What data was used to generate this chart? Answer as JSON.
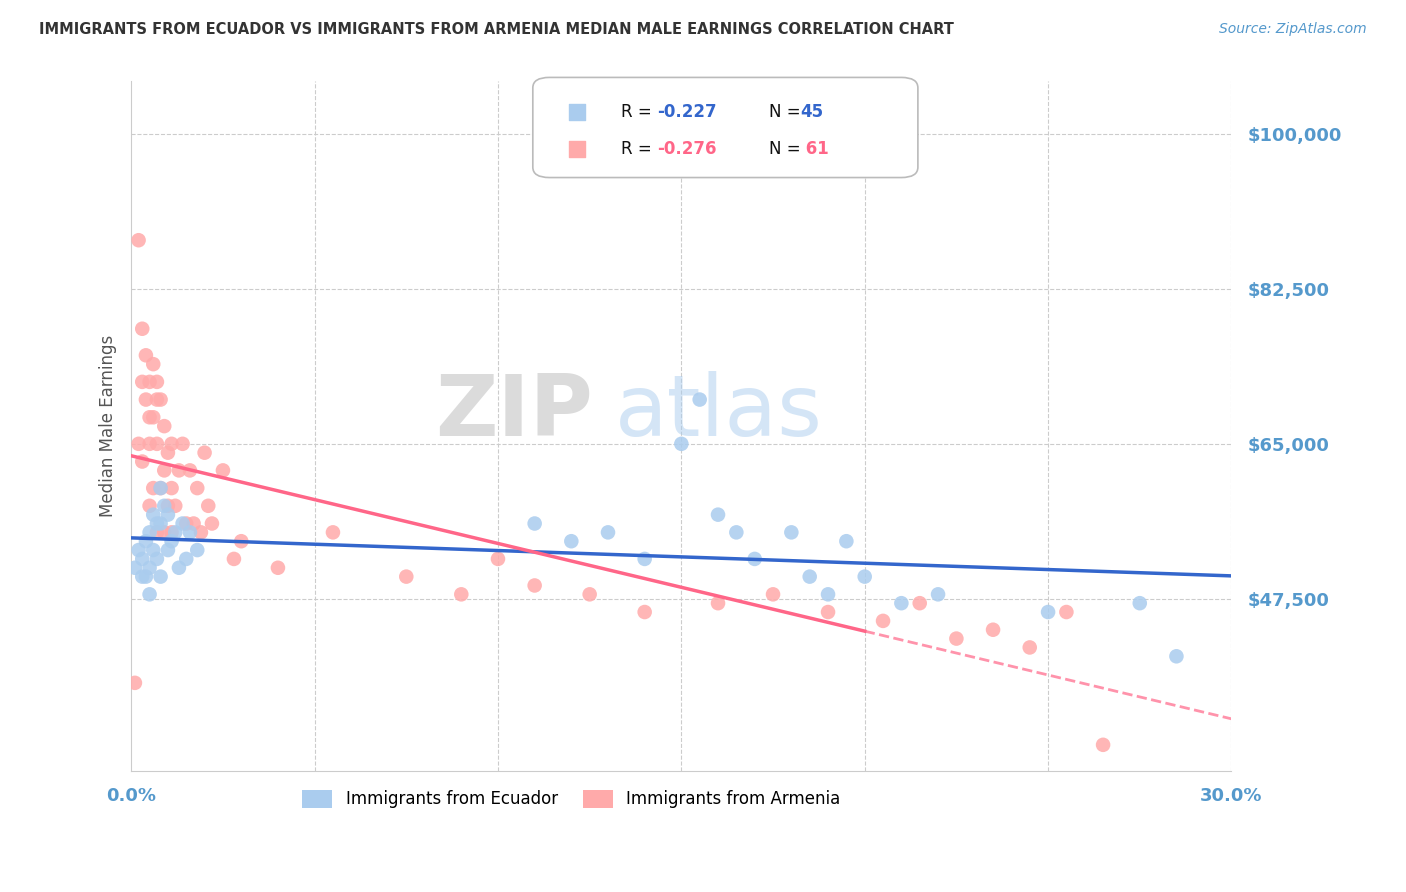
{
  "title": "IMMIGRANTS FROM ECUADOR VS IMMIGRANTS FROM ARMENIA MEDIAN MALE EARNINGS CORRELATION CHART",
  "source": "Source: ZipAtlas.com",
  "ylabel": "Median Male Earnings",
  "xlim": [
    0.0,
    0.3
  ],
  "ylim": [
    28000,
    106000
  ],
  "yticks": [
    47500,
    65000,
    82500,
    100000
  ],
  "ytick_labels": [
    "$47,500",
    "$65,000",
    "$82,500",
    "$100,000"
  ],
  "xticks": [
    0.0,
    0.05,
    0.1,
    0.15,
    0.2,
    0.25,
    0.3
  ],
  "xtick_labels": [
    "0.0%",
    "",
    "",
    "",
    "",
    "",
    "30.0%"
  ],
  "ecuador_color": "#aaccee",
  "armenia_color": "#ffaaaa",
  "ecuador_line_color": "#3366cc",
  "armenia_line_color": "#ff6688",
  "axis_label_color": "#5599cc",
  "title_color": "#333333",
  "watermark_zip": "ZIP",
  "watermark_atlas": "atlas",
  "ecuador_R": -0.227,
  "ecuador_N": 45,
  "armenia_R": -0.276,
  "armenia_N": 61,
  "ecuador_scatter_x": [
    0.001,
    0.002,
    0.003,
    0.003,
    0.004,
    0.004,
    0.005,
    0.005,
    0.005,
    0.006,
    0.006,
    0.007,
    0.007,
    0.008,
    0.008,
    0.008,
    0.009,
    0.01,
    0.01,
    0.011,
    0.012,
    0.013,
    0.014,
    0.015,
    0.016,
    0.018,
    0.11,
    0.12,
    0.13,
    0.14,
    0.15,
    0.155,
    0.16,
    0.165,
    0.17,
    0.18,
    0.185,
    0.19,
    0.195,
    0.2,
    0.21,
    0.22,
    0.25,
    0.275,
    0.285
  ],
  "ecuador_scatter_y": [
    51000,
    53000,
    52000,
    50000,
    54000,
    50000,
    55000,
    51000,
    48000,
    57000,
    53000,
    56000,
    52000,
    60000,
    56000,
    50000,
    58000,
    57000,
    53000,
    54000,
    55000,
    51000,
    56000,
    52000,
    55000,
    53000,
    56000,
    54000,
    55000,
    52000,
    65000,
    70000,
    57000,
    55000,
    52000,
    55000,
    50000,
    48000,
    54000,
    50000,
    47000,
    48000,
    46000,
    47000,
    41000
  ],
  "armenia_scatter_x": [
    0.001,
    0.002,
    0.002,
    0.003,
    0.003,
    0.003,
    0.004,
    0.004,
    0.005,
    0.005,
    0.005,
    0.005,
    0.006,
    0.006,
    0.006,
    0.007,
    0.007,
    0.007,
    0.007,
    0.008,
    0.008,
    0.009,
    0.009,
    0.009,
    0.01,
    0.01,
    0.011,
    0.011,
    0.011,
    0.012,
    0.013,
    0.014,
    0.015,
    0.016,
    0.017,
    0.018,
    0.019,
    0.02,
    0.021,
    0.022,
    0.025,
    0.028,
    0.03,
    0.04,
    0.055,
    0.075,
    0.09,
    0.1,
    0.11,
    0.125,
    0.14,
    0.16,
    0.175,
    0.19,
    0.205,
    0.215,
    0.225,
    0.235,
    0.245,
    0.255,
    0.265
  ],
  "armenia_scatter_y": [
    38000,
    88000,
    65000,
    78000,
    72000,
    63000,
    70000,
    75000,
    68000,
    72000,
    65000,
    58000,
    74000,
    68000,
    60000,
    70000,
    65000,
    72000,
    55000,
    70000,
    60000,
    67000,
    62000,
    55000,
    64000,
    58000,
    65000,
    60000,
    55000,
    58000,
    62000,
    65000,
    56000,
    62000,
    56000,
    60000,
    55000,
    64000,
    58000,
    56000,
    62000,
    52000,
    54000,
    51000,
    55000,
    50000,
    48000,
    52000,
    49000,
    48000,
    46000,
    47000,
    48000,
    46000,
    45000,
    47000,
    43000,
    44000,
    42000,
    46000,
    31000
  ]
}
